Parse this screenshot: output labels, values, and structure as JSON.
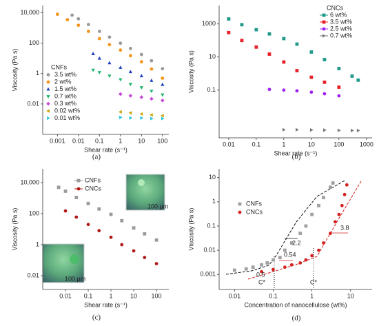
{
  "chart_data": [
    {
      "type": "scatter",
      "label": "(a)",
      "x_label": "Shear rate (s⁻¹)",
      "y_label": "Viscosity (Pa s)",
      "log": true,
      "legend_title": "CNFs",
      "legend": "left",
      "xlim": [
        0.0002,
        200
      ],
      "xticks": [
        0.001,
        0.01,
        0.1,
        1,
        10,
        100
      ],
      "ylim": [
        0.0001,
        30000
      ],
      "yticks": [
        {
          "value": 10000,
          "label": "10,000"
        },
        100,
        1,
        0.01
      ],
      "series": [
        {
          "name": "3.5 wt%",
          "color": "#999999",
          "marker": "circle",
          "x": [
            0.005,
            0.01,
            0.03,
            0.1,
            0.3,
            1,
            3,
            10,
            30,
            100
          ],
          "values": [
            7000,
            4000,
            1700,
            600,
            250,
            100,
            45,
            18,
            7,
            2.1
          ]
        },
        {
          "name": "2 wt%",
          "color": "#f7941d",
          "marker": "circle",
          "x": [
            0.001,
            0.003,
            0.01,
            0.03,
            0.1,
            0.3,
            1,
            3,
            10,
            30,
            100
          ],
          "values": [
            8000,
            3500,
            1500,
            600,
            200,
            80,
            35,
            15,
            6,
            2,
            0.5
          ]
        },
        {
          "name": "1.5 wt%",
          "color": "#1f3fbf",
          "marker": "triangle-up",
          "x": [
            0.05,
            0.1,
            0.3,
            1,
            3,
            10,
            30,
            100
          ],
          "values": [
            20,
            10,
            5,
            2.5,
            1.3,
            0.7,
            0.35,
            0.19
          ]
        },
        {
          "name": "0.7 wt%",
          "color": "#19b36b",
          "marker": "triangle-down",
          "x": [
            0.05,
            0.1,
            0.3,
            1,
            3,
            10,
            30,
            100
          ],
          "values": [
            1.7,
            1.2,
            0.7,
            0.4,
            0.2,
            0.12,
            0.07,
            0.04
          ]
        },
        {
          "name": "0.3 wt%",
          "color": "#c64fd6",
          "marker": "diamond",
          "x": [
            1,
            3,
            10,
            30,
            100
          ],
          "values": [
            0.045,
            0.035,
            0.028,
            0.022,
            0.017
          ]
        },
        {
          "name": "0.02 wt%",
          "color": "#c9a400",
          "marker": "triangle-left",
          "x": [
            1,
            3,
            10,
            30,
            100
          ],
          "values": [
            0.003,
            0.0026,
            0.0022,
            0.0019,
            0.0017
          ]
        },
        {
          "name": "0.01 wt%",
          "color": "#2bc6e0",
          "marker": "triangle-right",
          "x": [
            1,
            3,
            10,
            30,
            100
          ],
          "values": [
            0.0013,
            0.0012,
            0.0012,
            0.0011,
            0.0011
          ]
        }
      ]
    },
    {
      "type": "scatter",
      "label": "(b)",
      "x_label": "Shear rate (s⁻¹)",
      "y_label": "Viscosity (Pa s)",
      "log": true,
      "legend_title": "CNCs",
      "legend": "top-right",
      "xlim": [
        0.0045,
        1600
      ],
      "xticks": [
        0.01,
        0.1,
        1,
        10,
        100,
        1000
      ],
      "ylim": [
        0.00013,
        13000
      ],
      "yticks": [
        1000,
        10,
        0.1
      ],
      "series": [
        {
          "name": "6 wt%",
          "color": "#1f9a8a",
          "marker": "square",
          "x": [
            0.01,
            0.03,
            0.1,
            0.3,
            1,
            3,
            10,
            30,
            100,
            300,
            500
          ],
          "values": [
            2000,
            900,
            450,
            250,
            130,
            60,
            20,
            7,
            2,
            0.7,
            0.4
          ]
        },
        {
          "name": "3.5 wt%",
          "color": "#e8202a",
          "marker": "square",
          "x": [
            0.01,
            0.03,
            0.1,
            0.3,
            1,
            3,
            10,
            30,
            100
          ],
          "values": [
            300,
            100,
            40,
            15,
            5,
            1.5,
            0.6,
            0.3,
            0.15
          ]
        },
        {
          "name": "2.5 wt%",
          "color": "#a020f0",
          "marker": "circle",
          "x": [
            0.3,
            1,
            3,
            10,
            30,
            100
          ],
          "values": [
            0.11,
            0.1,
            0.09,
            0.075,
            0.06,
            0.045
          ]
        },
        {
          "name": "0.7 wt%",
          "color": "#777777",
          "marker": "triangle-right",
          "x": [
            1,
            3,
            10,
            30,
            100,
            300,
            500
          ],
          "values": [
            0.0004,
            0.0004,
            0.00039,
            0.00038,
            0.00037,
            0.00036,
            0.00036
          ]
        }
      ]
    },
    {
      "type": "scatter",
      "label": "(c)",
      "x_label": "Shear rate (s⁻¹)",
      "y_label": "Viscosity (Pa s)",
      "log": true,
      "legend": "top",
      "annotations": [
        "100 μm",
        "100 μm"
      ],
      "xlim": [
        0.001,
        350
      ],
      "xticks": [
        0.01,
        0.1,
        1,
        10,
        100
      ],
      "ylim": [
        0.0013,
        77000
      ],
      "yticks": [
        {
          "value": 10000,
          "label": "10,000"
        },
        100,
        1,
        0.01
      ],
      "series": [
        {
          "name": "CNFs",
          "color": "#9a9a9a",
          "marker": "square",
          "x": [
            0.005,
            0.01,
            0.03,
            0.1,
            0.3,
            1,
            3,
            10,
            30,
            100
          ],
          "values": [
            5000,
            2800,
            1100,
            450,
            200,
            90,
            35,
            12,
            5,
            2
          ]
        },
        {
          "name": "CNCs",
          "color": "#b01818",
          "marker": "circle",
          "x": [
            0.01,
            0.03,
            0.1,
            0.3,
            1,
            3,
            10,
            30,
            100
          ],
          "values": [
            150,
            60,
            20,
            8,
            3,
            1,
            0.4,
            0.15,
            0.06
          ]
        }
      ]
    },
    {
      "type": "scatter",
      "label": "(d)",
      "x_label": "Concentration of nanocellulose  (wt%)",
      "y_label": "Viscosity (Pa s)",
      "log": true,
      "legend": "left",
      "annotations": [
        "2.2",
        "0.54",
        "0.5",
        "3.8",
        "C*",
        "C*"
      ],
      "xlim": [
        0.004,
        36
      ],
      "xticks": [
        0.01,
        0.1,
        1,
        10
      ],
      "ylim": [
        0.00024,
        23
      ],
      "yticks": [
        10,
        1,
        0.1,
        0.01,
        0.001
      ],
      "series": [
        {
          "name": "CNFs",
          "color": "#a0a0a0",
          "marker": "square",
          "x": [
            0.01,
            0.02,
            0.03,
            0.05,
            0.07,
            0.1,
            0.15,
            0.2,
            0.3,
            0.5,
            0.7,
            1,
            1.5,
            2,
            3,
            3.5
          ],
          "values": [
            0.0015,
            0.0017,
            0.002,
            0.0025,
            0.003,
            0.004,
            0.005,
            0.01,
            0.02,
            0.05,
            0.1,
            0.3,
            0.7,
            1.5,
            4,
            6
          ]
        },
        {
          "name": "CNCs",
          "color": "#d42020",
          "marker": "circle",
          "x": [
            0.05,
            0.1,
            0.2,
            0.3,
            0.5,
            0.7,
            1,
            1.5,
            2,
            3,
            4,
            5,
            6,
            7,
            8
          ],
          "values": [
            0.0013,
            0.0016,
            0.002,
            0.0025,
            0.003,
            0.004,
            0.006,
            0.01,
            0.02,
            0.05,
            0.15,
            0.3,
            0.7,
            2,
            5
          ]
        }
      ]
    }
  ]
}
